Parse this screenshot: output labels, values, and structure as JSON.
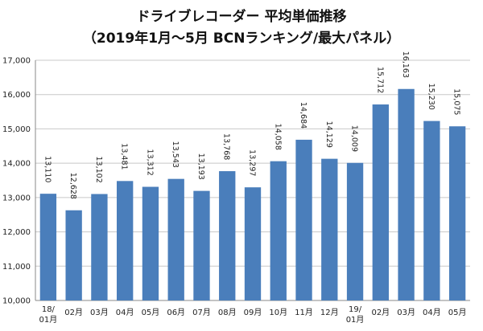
{
  "chart_data": {
    "type": "bar",
    "title": "ドライブレコーダー 平均単価推移",
    "subtitle": "（2019年1月～5月 BCNランキング/最大パネル）",
    "categories": [
      [
        "18/",
        "01月"
      ],
      [
        "02月"
      ],
      [
        "03月"
      ],
      [
        "04月"
      ],
      [
        "05月"
      ],
      [
        "06月"
      ],
      [
        "07月"
      ],
      [
        "08月"
      ],
      [
        "09月"
      ],
      [
        "10月"
      ],
      [
        "11月"
      ],
      [
        "12月"
      ],
      [
        "19/",
        "01月"
      ],
      [
        "02月"
      ],
      [
        "03月"
      ],
      [
        "04月"
      ],
      [
        "05月"
      ]
    ],
    "values": [
      13110,
      12628,
      13102,
      13481,
      13312,
      13543,
      13193,
      13768,
      13297,
      14058,
      14684,
      14129,
      14009,
      15712,
      16163,
      15230,
      15075
    ],
    "data_labels": [
      "13,110",
      "12,628",
      "13,102",
      "13,481",
      "13,312",
      "13,543",
      "13,193",
      "13,768",
      "13,297",
      "14,058",
      "14,684",
      "14,129",
      "14,009",
      "15,712",
      "16,163",
      "15,230",
      "15,075"
    ],
    "ylim": [
      10000,
      17000
    ],
    "yticks": [
      10000,
      11000,
      12000,
      13000,
      14000,
      15000,
      16000,
      17000
    ],
    "ytick_labels": [
      "10,000",
      "11,000",
      "12,000",
      "13,000",
      "14,000",
      "15,000",
      "16,000",
      "17,000"
    ],
    "grid": true,
    "bar_color": "#4a7ebb",
    "grid_color": "#c8c8c8"
  }
}
